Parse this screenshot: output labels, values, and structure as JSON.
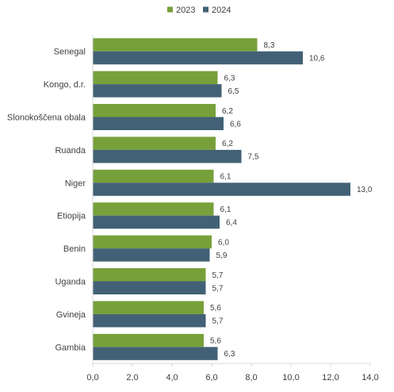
{
  "chart_data": {
    "type": "bar",
    "orientation": "horizontal",
    "categories": [
      "Senegal",
      "Kongo, d.r.",
      "Slonokoščena obala",
      "Ruanda",
      "Niger",
      "Etiopija",
      "Benin",
      "Uganda",
      "Gvineja",
      "Gambia"
    ],
    "series": [
      {
        "name": "2023",
        "color": "#77a03a",
        "values": [
          8.3,
          6.3,
          6.2,
          6.2,
          6.1,
          6.1,
          6.0,
          5.7,
          5.6,
          5.6
        ],
        "labels": [
          "8,3",
          "6,3",
          "6,2",
          "6,2",
          "6,1",
          "6,1",
          "6,0",
          "5,7",
          "5,6",
          "5,6"
        ]
      },
      {
        "name": "2024",
        "color": "#426176",
        "values": [
          10.6,
          6.5,
          6.6,
          7.5,
          13.0,
          6.4,
          5.9,
          5.7,
          5.7,
          6.3
        ],
        "labels": [
          "10,6",
          "6,5",
          "6,6",
          "7,5",
          "13,0",
          "6,4",
          "5,9",
          "5,7",
          "5,7",
          "6,3"
        ]
      }
    ],
    "xlim": [
      0,
      14
    ],
    "xticks": [
      0,
      2,
      4,
      6,
      8,
      10,
      12,
      14
    ],
    "xtick_labels": [
      "0,0",
      "2,0",
      "4,0",
      "6,0",
      "8,0",
      "10,0",
      "12,0",
      "14,0"
    ],
    "grid": false,
    "legend": "top-center",
    "axis_color": "#d9d9d9"
  }
}
